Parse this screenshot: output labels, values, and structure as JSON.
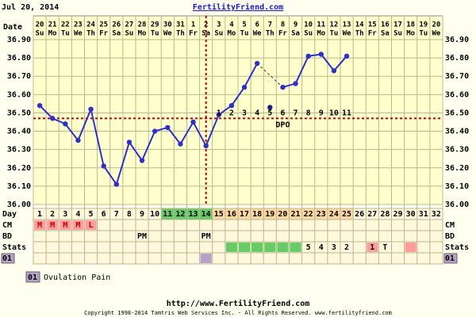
{
  "header": {
    "date": "Jul 20, 2014",
    "site": "FertilityFriend.com"
  },
  "chart_data": {
    "type": "line",
    "date_label": "Date",
    "dates": [
      20,
      21,
      22,
      23,
      24,
      25,
      26,
      27,
      28,
      29,
      30,
      31,
      1,
      2,
      3,
      4,
      5,
      6,
      7,
      8,
      9,
      10,
      11,
      12,
      13,
      14,
      15,
      16,
      17,
      18,
      19,
      20
    ],
    "weekdays": [
      "Su",
      "Mo",
      "Tu",
      "We",
      "Th",
      "Fr",
      "Sa",
      "Su",
      "Mo",
      "Tu",
      "We",
      "Th",
      "Fr",
      "Sa",
      "Su",
      "Mo",
      "Tu",
      "We",
      "Th",
      "Fr",
      "Sa",
      "Su",
      "Mo",
      "Tu",
      "We",
      "Th",
      "Fr",
      "Sa",
      "Su",
      "Mo",
      "Tu",
      "We"
    ],
    "days": [
      1,
      2,
      3,
      4,
      5,
      6,
      7,
      8,
      9,
      10,
      11,
      12,
      13,
      14,
      15,
      16,
      17,
      18,
      19,
      20,
      21,
      22,
      23,
      24,
      25,
      26,
      27,
      28,
      29,
      30,
      31,
      32
    ],
    "series": [
      {
        "color": "#2f2fd0",
        "values": [
          36.54,
          36.47,
          36.44,
          36.35,
          36.52,
          36.21,
          36.11,
          36.34,
          36.24,
          36.4,
          36.42,
          36.33,
          36.45,
          36.32,
          36.49,
          36.54,
          36.64,
          36.77,
          null,
          36.64,
          36.66,
          36.81,
          36.82,
          36.73,
          36.81,
          null,
          null,
          null,
          null,
          null,
          null,
          null
        ]
      },
      {
        "color": "#1a1a8c",
        "values": [
          null,
          null,
          null,
          null,
          null,
          null,
          null,
          null,
          null,
          null,
          null,
          null,
          null,
          null,
          null,
          null,
          null,
          null,
          36.53,
          null,
          null,
          null,
          null,
          null,
          null,
          null,
          null,
          null,
          null,
          null,
          null,
          null
        ]
      }
    ],
    "ylim": [
      36.0,
      36.9
    ],
    "yticks": [
      {
        "value": 36.0,
        "label": "36.00"
      },
      {
        "value": 36.1,
        "label": "36.10"
      },
      {
        "value": 36.2,
        "label": "36.20"
      },
      {
        "value": 36.3,
        "label": "36.30"
      },
      {
        "value": 36.4,
        "label": "36.40"
      },
      {
        "value": 36.5,
        "label": "36.50"
      },
      {
        "value": 36.6,
        "label": "36.60"
      },
      {
        "value": 36.7,
        "label": "36.70"
      },
      {
        "value": 36.8,
        "label": "36.80"
      },
      {
        "value": 36.9,
        "label": "36.90"
      }
    ],
    "grid": true,
    "coverline": 36.47,
    "ovulation_day": 14,
    "reference_color": "#c00000",
    "dpo": [
      1,
      2,
      3,
      4,
      5,
      6,
      7,
      8,
      9,
      10,
      11
    ],
    "dpo_label": "DPO"
  },
  "rows": {
    "day": {
      "label": "Day",
      "highlights": [
        {
          "from": 11,
          "to": 14,
          "color": "#66cc66"
        },
        {
          "from": 15,
          "to": 25,
          "color": "#ffd8a0"
        }
      ]
    },
    "cm": {
      "label": "CM",
      "entries": [
        {
          "day": 1,
          "text": "M",
          "color": "#ff9c9c"
        },
        {
          "day": 2,
          "text": "M",
          "color": "#ff9c9c"
        },
        {
          "day": 3,
          "text": "M",
          "color": "#ff9c9c"
        },
        {
          "day": 4,
          "text": "M",
          "color": "#ff9c9c"
        },
        {
          "day": 5,
          "text": "L",
          "color": "#ff9c9c"
        }
      ]
    },
    "bd": {
      "label": "BD",
      "entries": [
        {
          "day": 9,
          "text": "PM"
        },
        {
          "day": 14,
          "text": "PM"
        }
      ]
    },
    "stats": {
      "label": "Stats",
      "entries": [
        {
          "day": 16,
          "color": "#66cc66"
        },
        {
          "day": 17,
          "color": "#66cc66"
        },
        {
          "day": 18,
          "color": "#66cc66"
        },
        {
          "day": 19,
          "color": "#66cc66"
        },
        {
          "day": 20,
          "color": "#66cc66"
        },
        {
          "day": 21,
          "color": "#66cc66"
        },
        {
          "day": 22,
          "text": "5"
        },
        {
          "day": 23,
          "text": "4"
        },
        {
          "day": 24,
          "text": "3"
        },
        {
          "day": 25,
          "text": "2"
        },
        {
          "day": 27,
          "text": "1",
          "color": "#ff9c9c"
        },
        {
          "day": 28,
          "text": "T"
        },
        {
          "day": 30,
          "color": "#ff9c9c"
        }
      ]
    },
    "custom": {
      "label": "01",
      "color": "#b8a0c8",
      "entries": [
        {
          "day": 14,
          "color": "#b8a0c8"
        }
      ],
      "legend": "Ovulation Pain"
    }
  },
  "footer": {
    "url": "http://www.FertilityFriend.com",
    "copyright": "Copyright 1998-2014 Tamtris Web Services Inc. - All Rights Reserved. www.fertilityfriend.com"
  }
}
